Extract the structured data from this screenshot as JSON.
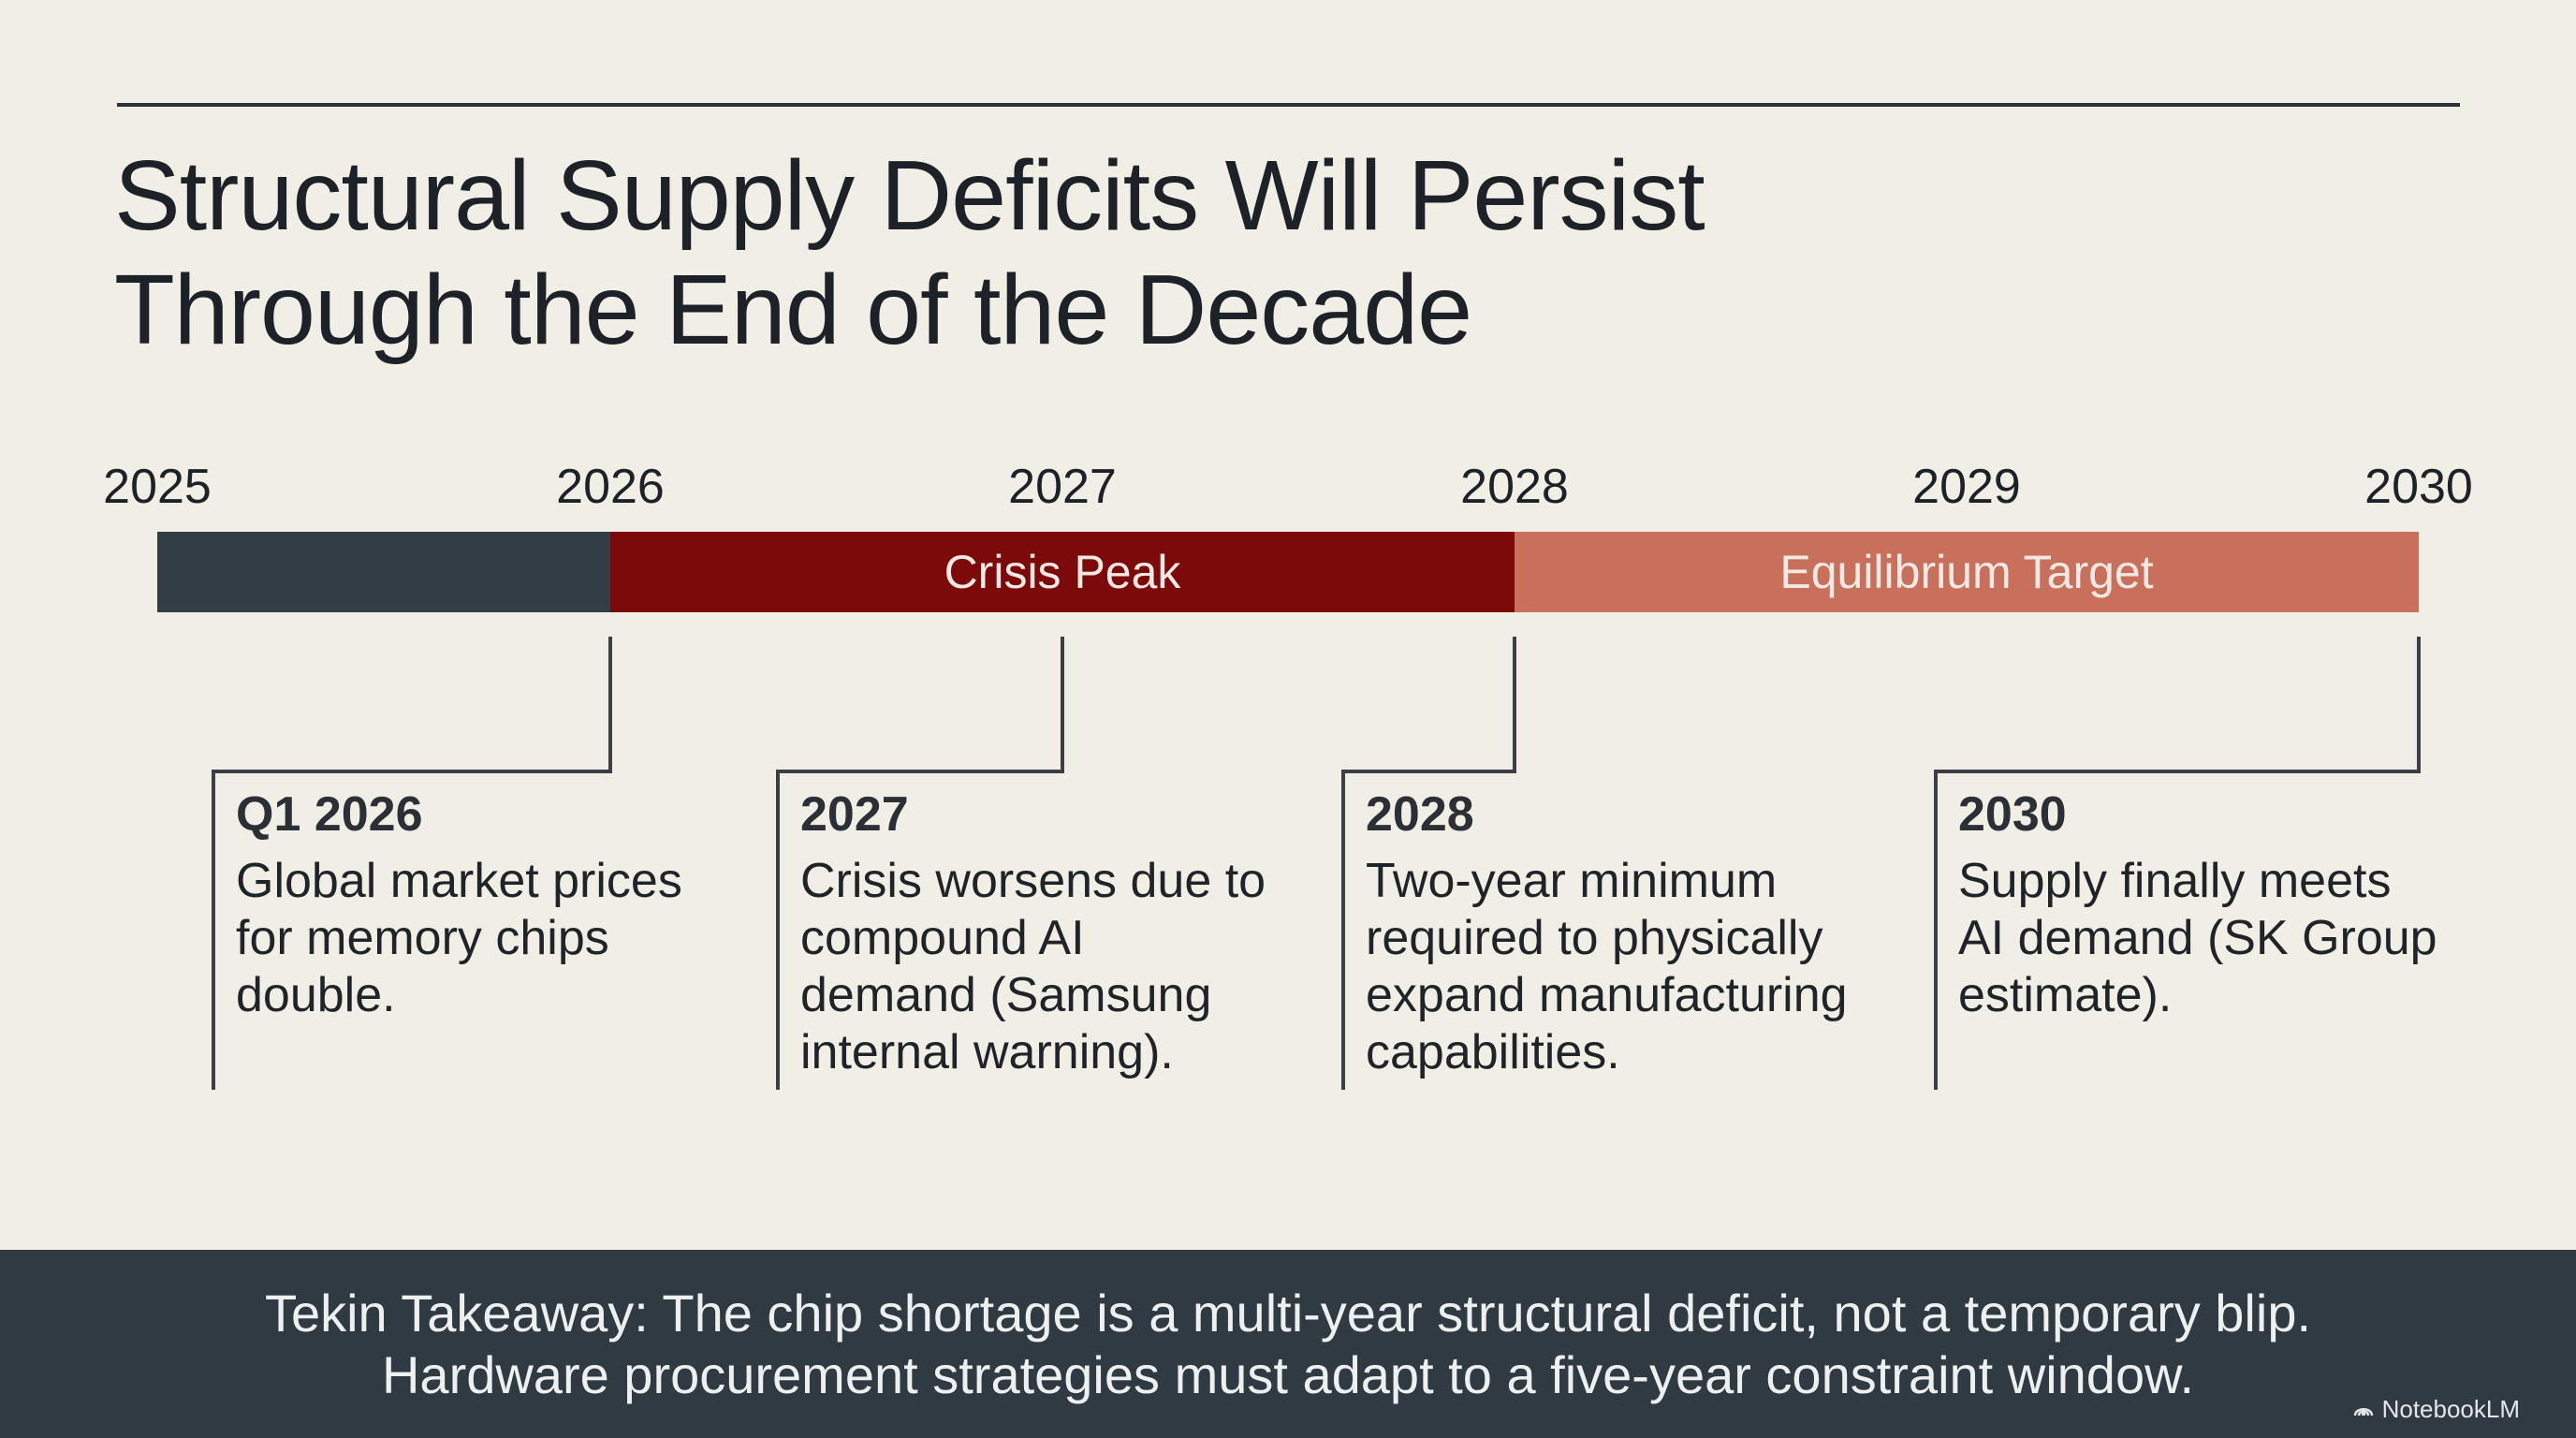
{
  "title": {
    "line1": "Structural Supply Deficits Will Persist",
    "line2": "Through the End of the Decade"
  },
  "timeline": {
    "years": [
      "2025",
      "2026",
      "2027",
      "2028",
      "2029",
      "2030"
    ],
    "phases": [
      {
        "label": "",
        "start": 2025,
        "end": 2026,
        "color": "#333d45"
      },
      {
        "label": "Crisis Peak",
        "start": 2026,
        "end": 2028,
        "color": "#7d0a0a"
      },
      {
        "label": "Equilibrium Target",
        "start": 2028,
        "end": 2030,
        "color": "#c9705c"
      }
    ],
    "events": [
      {
        "title": "Q1 2026",
        "description": "Global market prices for memory chips double."
      },
      {
        "title": "2027",
        "description": "Crisis worsens due to compound AI demand (Samsung internal warning)."
      },
      {
        "title": "2028",
        "description": "Two-year minimum required to physically expand manufacturing capabilities."
      },
      {
        "title": "2030",
        "description": "Supply finally meets AI demand (SK Group estimate)."
      }
    ]
  },
  "takeaway": {
    "line1": "Tekin Takeaway: The chip shortage is a multi-year structural deficit, not a temporary blip.",
    "line2": "Hardware procurement strategies must adapt to a five-year constraint window."
  },
  "brand": {
    "label": "NotebookLM",
    "icon": "notebooklm-logo-icon"
  }
}
